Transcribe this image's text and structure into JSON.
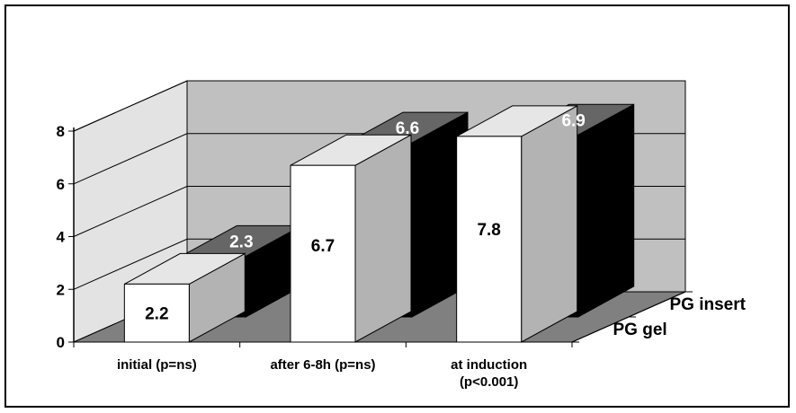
{
  "chart_data": {
    "type": "bar",
    "subtype": "3d-clustered-depth",
    "title": "",
    "xlabel": "",
    "ylabel": "",
    "ylim": [
      0,
      8
    ],
    "yticks": [
      "0",
      "2",
      "4",
      "6",
      "8"
    ],
    "grid": true,
    "categories": [
      [
        "initial (p=ns)"
      ],
      [
        "after 6-8h (p=ns)"
      ],
      [
        "at induction",
        "(p<0.001)"
      ]
    ],
    "series": [
      {
        "name": "PG gel",
        "values": [
          2.2,
          6.7,
          7.8
        ],
        "labels": [
          "2.2",
          "6.7",
          "7.8"
        ]
      },
      {
        "name": "PG insert",
        "values": [
          2.3,
          6.6,
          6.9
        ],
        "labels": [
          "2.3",
          "6.6",
          "6.9"
        ]
      }
    ],
    "colors": {
      "back_wall": "#c0c0c0",
      "side_wall": "#e3e3e3",
      "floor": "#808080",
      "front_bar_face": "#ffffff",
      "front_bar_top": "#e6e6e6",
      "front_bar_side": "#b3b3b3",
      "back_bar_face": "#000000",
      "back_bar_top": "#666666",
      "back_bar_label": "#ffffff",
      "front_bar_label": "#000000"
    }
  }
}
